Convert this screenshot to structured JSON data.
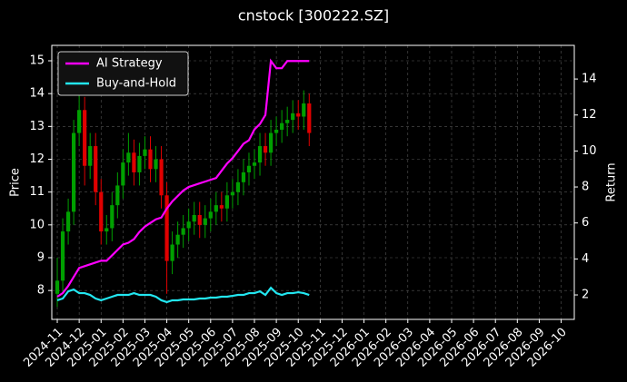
{
  "chart_data": {
    "type": "candlestick",
    "title": "cnstock [300222.SZ]",
    "ylabel": "Price",
    "y2label": "Return",
    "x": [
      0,
      0.25,
      0.5,
      0.75,
      1,
      1.25,
      1.5,
      1.75,
      2,
      2.25,
      2.5,
      2.75,
      3,
      3.25,
      3.5,
      3.75,
      4,
      4.25,
      4.5,
      4.75,
      5,
      5.25,
      5.5,
      5.75,
      6,
      6.25,
      6.5,
      6.75,
      7,
      7.25,
      7.5,
      7.75,
      8,
      8.25,
      8.5,
      8.75,
      9,
      9.25,
      9.5,
      9.75,
      10,
      10.25,
      10.5,
      10.75,
      11,
      11.25,
      11.5
    ],
    "xlim": [
      -0.25,
      23.6
    ],
    "xticks": [
      {
        "value": 0,
        "label": "2024-11"
      },
      {
        "value": 1,
        "label": "2024-12"
      },
      {
        "value": 2,
        "label": "2025-01"
      },
      {
        "value": 3,
        "label": "2025-02"
      },
      {
        "value": 4,
        "label": "2025-03"
      },
      {
        "value": 5,
        "label": "2025-04"
      },
      {
        "value": 6,
        "label": "2025-05"
      },
      {
        "value": 7,
        "label": "2025-06"
      },
      {
        "value": 8,
        "label": "2025-07"
      },
      {
        "value": 9,
        "label": "2025-08"
      },
      {
        "value": 10,
        "label": "2025-09"
      },
      {
        "value": 11,
        "label": "2025-10"
      },
      {
        "value": 12,
        "label": "2025-11"
      },
      {
        "value": 13,
        "label": "2025-12"
      },
      {
        "value": 14,
        "label": "2026-01"
      },
      {
        "value": 15,
        "label": "2026-02"
      },
      {
        "value": 16,
        "label": "2026-03"
      },
      {
        "value": 17,
        "label": "2026-04"
      },
      {
        "value": 18,
        "label": "2026-05"
      },
      {
        "value": 19,
        "label": "2026-06"
      },
      {
        "value": 20,
        "label": "2026-07"
      },
      {
        "value": 21,
        "label": "2026-08"
      },
      {
        "value": 22,
        "label": "2026-09"
      },
      {
        "value": 23,
        "label": "2026-10"
      }
    ],
    "ylim": [
      7.12,
      15.47
    ],
    "yticks": [
      8,
      9,
      10,
      11,
      12,
      13,
      14,
      15
    ],
    "y2lim": [
      0.64,
      15.87
    ],
    "y2ticks": [
      2,
      4,
      6,
      8,
      10,
      12,
      14
    ],
    "grid": true,
    "legend": "upper left",
    "candles": {
      "up_color": "#00a000",
      "down_color": "#e00000",
      "open": [
        7.9,
        8.3,
        9.8,
        10.4,
        12.8,
        13.5,
        11.8,
        12.4,
        11.0,
        9.8,
        9.9,
        10.6,
        11.2,
        11.9,
        12.2,
        11.6,
        12.1,
        12.3,
        11.7,
        12.0,
        10.9,
        8.9,
        9.4,
        9.7,
        9.9,
        10.1,
        10.3,
        10.0,
        10.2,
        10.4,
        10.6,
        10.5,
        10.9,
        11.0,
        11.3,
        11.6,
        11.8,
        11.9,
        12.4,
        12.2,
        12.8,
        12.9,
        13.1,
        13.2,
        13.4,
        13.3,
        13.7
      ],
      "high": [
        9.0,
        10.2,
        10.8,
        13.2,
        14.3,
        13.9,
        12.8,
        12.8,
        11.4,
        10.3,
        11.0,
        11.6,
        12.3,
        12.8,
        12.6,
        12.5,
        12.7,
        12.7,
        12.4,
        12.4,
        11.3,
        9.8,
        10.1,
        10.3,
        10.5,
        10.7,
        10.7,
        10.6,
        10.8,
        11.0,
        11.0,
        11.3,
        11.4,
        11.7,
        12.0,
        12.2,
        12.3,
        12.8,
        12.8,
        13.2,
        13.3,
        13.5,
        13.6,
        13.8,
        13.8,
        14.1,
        14.0
      ],
      "low": [
        7.5,
        7.9,
        9.4,
        10.0,
        12.4,
        11.2,
        11.4,
        10.6,
        9.4,
        9.4,
        9.5,
        10.2,
        10.8,
        11.5,
        11.2,
        11.2,
        11.7,
        11.3,
        11.3,
        10.5,
        7.9,
        8.5,
        9.0,
        9.3,
        9.5,
        9.7,
        9.6,
        9.6,
        9.8,
        10.0,
        10.1,
        10.1,
        10.5,
        10.6,
        10.9,
        11.2,
        11.4,
        11.5,
        11.8,
        11.8,
        12.4,
        12.5,
        12.7,
        12.8,
        12.9,
        12.9,
        12.4
      ],
      "close": [
        8.3,
        9.8,
        10.4,
        12.8,
        13.5,
        11.8,
        12.4,
        11.0,
        9.8,
        9.9,
        10.6,
        11.2,
        11.9,
        12.2,
        11.6,
        12.1,
        12.3,
        11.7,
        12.0,
        10.9,
        8.9,
        9.4,
        9.7,
        9.9,
        10.1,
        10.3,
        10.0,
        10.2,
        10.4,
        10.6,
        10.5,
        10.9,
        11.0,
        11.3,
        11.6,
        11.8,
        11.9,
        12.4,
        12.2,
        12.8,
        12.9,
        13.1,
        13.2,
        13.4,
        13.3,
        13.7,
        12.8
      ]
    },
    "series": [
      {
        "name": "AI Strategy",
        "color": "#ff00ff",
        "axis": "y2",
        "values": [
          1.9,
          2.1,
          2.5,
          3.0,
          3.5,
          3.6,
          3.7,
          3.8,
          3.9,
          3.9,
          4.2,
          4.5,
          4.8,
          4.9,
          5.1,
          5.5,
          5.8,
          6.0,
          6.2,
          6.3,
          6.8,
          7.2,
          7.5,
          7.8,
          8.0,
          8.1,
          8.2,
          8.3,
          8.4,
          8.5,
          8.9,
          9.3,
          9.6,
          10.0,
          10.4,
          10.6,
          11.2,
          11.5,
          12.0,
          15.0,
          14.6,
          14.6,
          15.0,
          15.0,
          15.0,
          15.0,
          15.0
        ]
      },
      {
        "name": "Buy-and-Hold",
        "color": "#22e6f0",
        "axis": "y2",
        "values": [
          1.7,
          1.8,
          2.2,
          2.3,
          2.1,
          2.1,
          2.0,
          1.8,
          1.7,
          1.8,
          1.9,
          2.0,
          2.0,
          2.0,
          2.1,
          2.0,
          2.0,
          2.0,
          1.9,
          1.7,
          1.6,
          1.7,
          1.7,
          1.75,
          1.75,
          1.75,
          1.8,
          1.8,
          1.85,
          1.85,
          1.9,
          1.9,
          1.95,
          2.0,
          2.0,
          2.1,
          2.1,
          2.2,
          2.0,
          2.4,
          2.1,
          2.0,
          2.1,
          2.1,
          2.15,
          2.1,
          2.0
        ]
      }
    ]
  }
}
